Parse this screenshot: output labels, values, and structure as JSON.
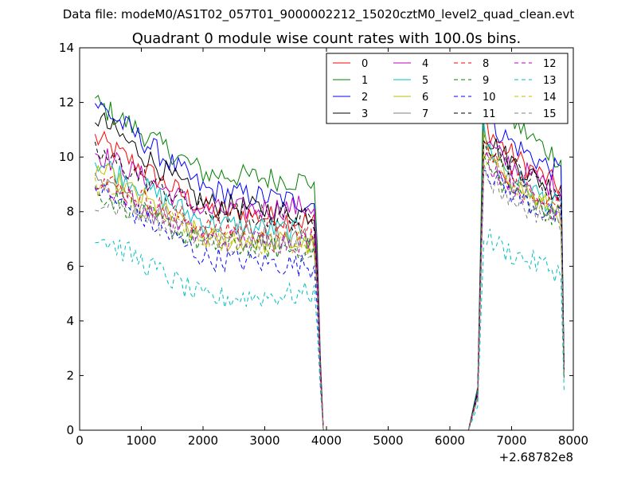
{
  "chart_data": {
    "type": "line",
    "suptitle": "Data file: modeM0/AS1T02_057T01_9000002212_15020cztM0_level2_quad_clean.evt",
    "title": "Quadrant 0 module wise count rates with 100.0s bins.",
    "xlabel": "",
    "ylabel": "",
    "x_offset_label": "+2.68782e8",
    "xlim": [
      0,
      8000
    ],
    "ylim": [
      0,
      14
    ],
    "xticks": [
      "0",
      "1000",
      "2000",
      "3000",
      "4000",
      "5000",
      "6000",
      "7000",
      "8000"
    ],
    "yticks": [
      "0",
      "2",
      "4",
      "6",
      "8",
      "10",
      "12",
      "14"
    ],
    "legend_position": "top-right",
    "segments": [
      {
        "x_start": 250,
        "x_end": 3950,
        "step": 50
      },
      {
        "x_start": 3950,
        "x_end": 6300,
        "step": 50,
        "zero_gap": true
      },
      {
        "x_start": 6350,
        "x_end": 7850,
        "step": 50
      }
    ],
    "series": [
      {
        "name": "0",
        "color": "#ff0000",
        "dash": false,
        "seg1": {
          "start": 10.7,
          "mid": 8.1,
          "end": 7.6
        },
        "seg2": {
          "peak": 11.5,
          "end": 8.9
        }
      },
      {
        "name": "1",
        "color": "#008000",
        "dash": false,
        "seg1": {
          "start": 12.0,
          "mid": 9.4,
          "end": 9.1
        },
        "seg2": {
          "peak": 13.1,
          "end": 9.9
        }
      },
      {
        "name": "2",
        "color": "#0000ff",
        "dash": false,
        "seg1": {
          "start": 12.0,
          "mid": 8.8,
          "end": 8.3
        },
        "seg2": {
          "peak": 11.9,
          "end": 9.4
        }
      },
      {
        "name": "3",
        "color": "#000000",
        "dash": false,
        "seg1": {
          "start": 11.5,
          "mid": 8.3,
          "end": 7.9
        },
        "seg2": {
          "peak": 11.2,
          "end": 8.7
        }
      },
      {
        "name": "4",
        "color": "#bf00bf",
        "dash": false,
        "seg1": {
          "start": 10.2,
          "mid": 8.0,
          "end": 8.2
        },
        "seg2": {
          "peak": 10.8,
          "end": 8.8
        }
      },
      {
        "name": "5",
        "color": "#00bfbf",
        "dash": false,
        "seg1": {
          "start": 9.9,
          "mid": 7.6,
          "end": 7.2
        },
        "seg2": {
          "peak": 10.9,
          "end": 8.1
        }
      },
      {
        "name": "6",
        "color": "#bfbf00",
        "dash": false,
        "seg1": {
          "start": 9.6,
          "mid": 7.0,
          "end": 6.8
        },
        "seg2": {
          "peak": 10.6,
          "end": 7.9
        }
      },
      {
        "name": "7",
        "color": "#808080",
        "dash": false,
        "seg1": {
          "start": 9.0,
          "mid": 7.3,
          "end": 7.0
        },
        "seg2": {
          "peak": 10.4,
          "end": 8.0
        }
      },
      {
        "name": "8",
        "color": "#ff0000",
        "dash": true,
        "seg1": {
          "start": 9.3,
          "mid": 7.4,
          "end": 7.2
        },
        "seg2": {
          "peak": 10.5,
          "end": 8.3
        }
      },
      {
        "name": "9",
        "color": "#008000",
        "dash": true,
        "seg1": {
          "start": 8.8,
          "mid": 6.8,
          "end": 6.6
        },
        "seg2": {
          "peak": 10.0,
          "end": 7.8
        }
      },
      {
        "name": "10",
        "color": "#0000ff",
        "dash": true,
        "seg1": {
          "start": 8.9,
          "mid": 6.3,
          "end": 6.0
        },
        "seg2": {
          "peak": 9.9,
          "end": 7.7
        }
      },
      {
        "name": "11",
        "color": "#000000",
        "dash": true,
        "seg1": {
          "start": 10.2,
          "mid": 8.0,
          "end": 7.7
        },
        "seg2": {
          "peak": 11.0,
          "end": 8.6
        }
      },
      {
        "name": "12",
        "color": "#bf00bf",
        "dash": true,
        "seg1": {
          "start": 9.1,
          "mid": 7.0,
          "end": 6.9
        },
        "seg2": {
          "peak": 10.3,
          "end": 8.0
        }
      },
      {
        "name": "13",
        "color": "#00bfbf",
        "dash": true,
        "seg1": {
          "start": 7.2,
          "mid": 4.8,
          "end": 5.0
        },
        "seg2": {
          "peak": 7.3,
          "end": 5.8
        }
      },
      {
        "name": "14",
        "color": "#bfbf00",
        "dash": true,
        "seg1": {
          "start": 9.0,
          "mid": 7.0,
          "end": 6.8
        },
        "seg2": {
          "peak": 10.2,
          "end": 7.9
        }
      },
      {
        "name": "15",
        "color": "#808080",
        "dash": true,
        "seg1": {
          "start": 8.5,
          "mid": 6.9,
          "end": 6.7
        },
        "seg2": {
          "peak": 9.6,
          "end": 7.6
        }
      }
    ]
  }
}
